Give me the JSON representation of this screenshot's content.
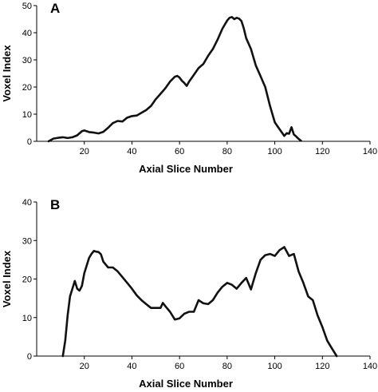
{
  "chart_data": [
    {
      "type": "line",
      "panel_label": "A",
      "xlabel": "Axial Slice Number",
      "ylabel": "Voxel Index",
      "xlim": [
        0,
        140
      ],
      "ylim": [
        0,
        50
      ],
      "x_ticks": [
        20,
        40,
        60,
        80,
        100,
        120,
        140
      ],
      "y_ticks": [
        0,
        10,
        20,
        30,
        40,
        50
      ],
      "grid": false,
      "legend": "none",
      "line_color": "#111111",
      "series": [
        {
          "x": [
            5,
            7,
            9,
            11,
            13,
            15,
            17,
            19,
            20,
            22,
            24,
            26,
            28,
            30,
            32,
            34,
            36,
            38,
            40,
            42,
            44,
            46,
            48,
            50,
            52,
            54,
            56,
            58,
            59,
            60,
            61,
            62,
            63,
            64,
            66,
            68,
            70,
            72,
            74,
            76,
            78,
            80,
            81,
            82,
            83,
            84,
            85,
            86,
            87,
            88,
            89,
            90,
            92,
            94,
            96,
            98,
            100,
            102,
            104,
            105,
            106,
            107,
            108,
            109,
            110,
            111
          ],
          "y": [
            0,
            1,
            1.3,
            1.5,
            1.2,
            1.5,
            2.2,
            3.7,
            4,
            3.4,
            3.2,
            2.9,
            3.5,
            5,
            6.7,
            7.5,
            7.3,
            8.7,
            9.3,
            9.5,
            10.5,
            11.5,
            13,
            15.5,
            17.5,
            19.5,
            22,
            23.8,
            24.1,
            23.5,
            22.3,
            21.5,
            20.4,
            22,
            24.5,
            27,
            28.5,
            31.5,
            34,
            37.5,
            41.5,
            44.5,
            45.5,
            45.8,
            45,
            45.5,
            45.2,
            44.3,
            41.5,
            38,
            36,
            34,
            28,
            24,
            20,
            13,
            7,
            4.5,
            2,
            3,
            2.8,
            5.2,
            2.5,
            1.8,
            0.9,
            0.2
          ]
        }
      ]
    },
    {
      "type": "line",
      "panel_label": "B",
      "xlabel": "Axial Slice Number",
      "ylabel": "Voxel Index",
      "xlim": [
        0,
        140
      ],
      "ylim": [
        0,
        40
      ],
      "x_ticks": [
        20,
        40,
        60,
        80,
        100,
        120,
        140
      ],
      "y_ticks": [
        0,
        10,
        20,
        30,
        40
      ],
      "grid": false,
      "legend": "none",
      "line_color": "#111111",
      "series": [
        {
          "x": [
            11,
            12,
            13,
            14,
            15,
            16,
            17,
            18,
            19,
            20,
            21,
            22,
            23,
            24,
            25,
            26,
            27,
            28,
            30,
            32,
            34,
            36,
            38,
            40,
            42,
            44,
            46,
            48,
            50,
            52,
            53,
            54,
            56,
            58,
            60,
            62,
            64,
            66,
            68,
            70,
            72,
            74,
            76,
            78,
            80,
            82,
            84,
            86,
            88,
            90,
            92,
            94,
            96,
            98,
            100,
            102,
            104,
            106,
            108,
            110,
            112,
            114,
            116,
            118,
            120,
            122,
            124,
            126
          ],
          "y": [
            0,
            4,
            10.5,
            15.5,
            17.5,
            19.5,
            17.5,
            17,
            18.2,
            21.5,
            23.5,
            25.5,
            26.5,
            27.3,
            27.1,
            27,
            26.4,
            24.5,
            23,
            23,
            22,
            20.5,
            19,
            17.5,
            15.8,
            14.5,
            13.5,
            12.5,
            12.5,
            12.5,
            13.8,
            13,
            11.5,
            9.5,
            9.8,
            11,
            11.5,
            11.5,
            14.5,
            13.7,
            13.5,
            14.5,
            16.5,
            18,
            19,
            18.5,
            17.5,
            19,
            20.3,
            17.3,
            21.5,
            25,
            26.2,
            26.5,
            26,
            27.5,
            28.3,
            26,
            26.5,
            22,
            19,
            15.5,
            14.5,
            10.5,
            7.5,
            4,
            2,
            0
          ]
        }
      ]
    }
  ]
}
